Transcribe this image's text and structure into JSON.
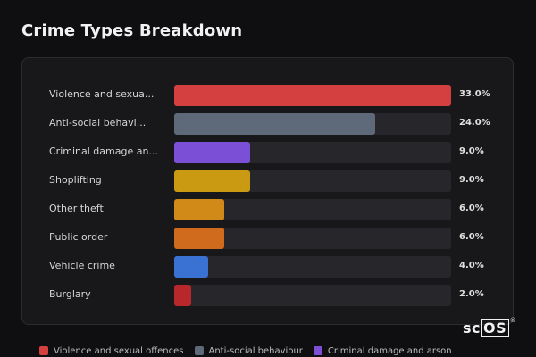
{
  "title": "Crime Types Breakdown",
  "logo": {
    "text_a": "sc",
    "text_b": "OS",
    "reg": "®"
  },
  "chart_data": {
    "type": "bar",
    "orientation": "horizontal",
    "title": "Crime Types Breakdown",
    "categories": [
      "Violence and sexua...",
      "Anti-social behavi...",
      "Criminal damage an...",
      "Shoplifting",
      "Other theft",
      "Public order",
      "Vehicle crime",
      "Burglary"
    ],
    "full_names": [
      "Violence and sexual offences",
      "Anti-social behaviour",
      "Criminal damage and arson",
      "Shoplifting",
      "Other theft",
      "Public order",
      "Vehicle crime",
      "Burglary"
    ],
    "values": [
      33.0,
      24.0,
      9.0,
      9.0,
      6.0,
      6.0,
      4.0,
      2.0
    ],
    "value_labels": [
      "33.0%",
      "24.0%",
      "9.0%",
      "9.0%",
      "6.0%",
      "6.0%",
      "4.0%",
      "2.0%"
    ],
    "colors": [
      "#d43f3f",
      "#5e6a7a",
      "#7b4fd6",
      "#c99a12",
      "#d18a18",
      "#d06a1c",
      "#3a72d4",
      "#b8282a"
    ],
    "xlim": [
      0,
      33
    ],
    "grid": false,
    "legend_position": "bottom",
    "legend": [
      {
        "name": "Violence and sexual offences",
        "color": "#d43f3f"
      },
      {
        "name": "Anti-social behaviour",
        "color": "#5e6a7a"
      },
      {
        "name": "Criminal damage and arson",
        "color": "#7b4fd6"
      }
    ]
  }
}
